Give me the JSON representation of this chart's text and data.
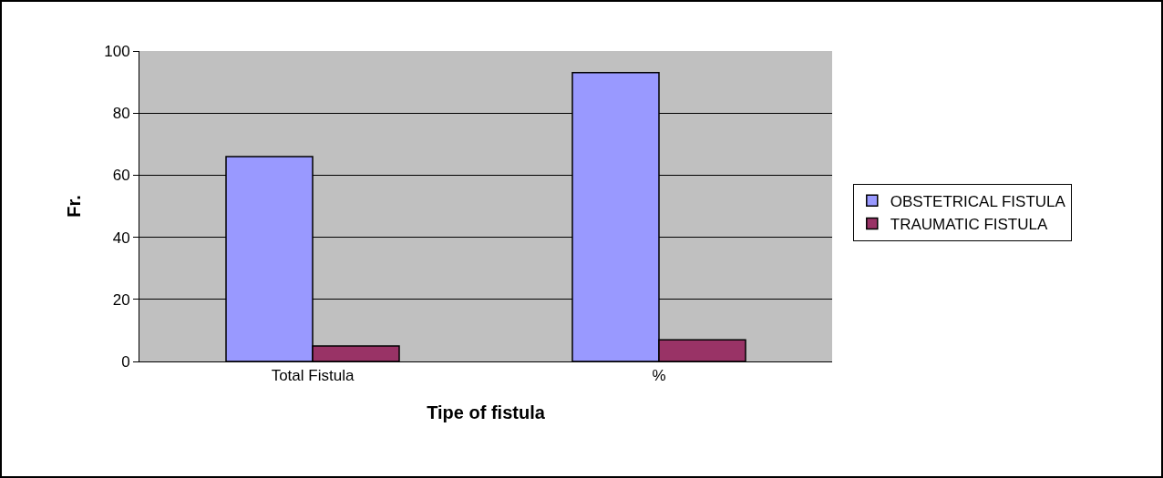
{
  "chart_data": {
    "type": "bar",
    "xlabel": "Tipe of fistula",
    "ylabel": "Fr.",
    "categories": [
      "Total Fistula",
      "%"
    ],
    "series": [
      {
        "name": "OBSTETRICAL FISTULA",
        "color": "#9999ff",
        "values": [
          66,
          93
        ]
      },
      {
        "name": "TRAUMATIC FISTULA",
        "color": "#993366",
        "values": [
          5,
          7
        ]
      }
    ],
    "ylim": [
      0,
      100
    ],
    "yticks": [
      0,
      20,
      40,
      60,
      80,
      100
    ],
    "grid": "y",
    "legend": "right"
  }
}
